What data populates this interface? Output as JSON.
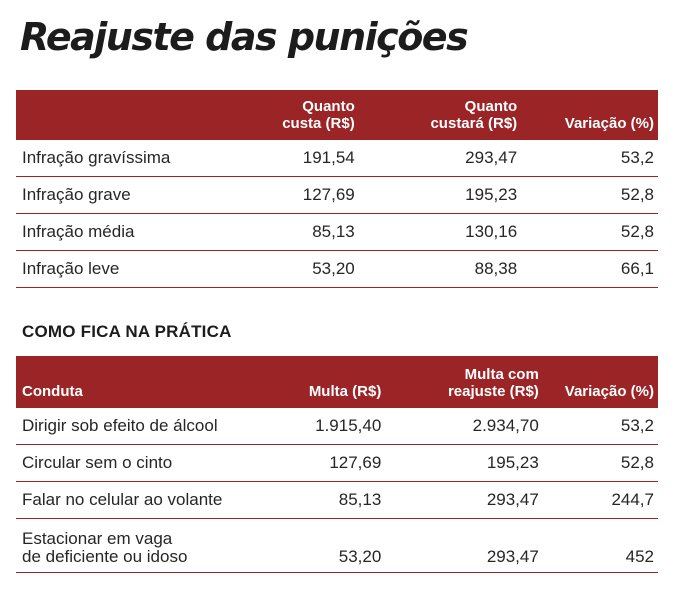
{
  "title": "Reajuste das punições",
  "table1": {
    "headers": [
      "",
      "Quanto\ncusta (R$)",
      "Quanto\ncustará (R$)",
      "Variação (%)"
    ],
    "rows": [
      [
        "Infração gravíssima",
        "191,54",
        "293,47",
        "53,2"
      ],
      [
        "Infração grave",
        "127,69",
        "195,23",
        "52,8"
      ],
      [
        "Infração média",
        "85,13",
        "130,16",
        "52,8"
      ],
      [
        "Infração leve",
        "53,20",
        "88,38",
        "66,1"
      ]
    ]
  },
  "subtitle": "COMO FICA NA PRÁTICA",
  "table2": {
    "headers": [
      "Conduta",
      "Multa (R$)",
      "Multa com\nreajuste (R$)",
      "Variação (%)"
    ],
    "rows": [
      [
        "Dirigir sob efeito de álcool",
        "1.915,40",
        "2.934,70",
        "53,2"
      ],
      [
        "Circular sem o cinto",
        "127,69",
        "195,23",
        "52,8"
      ],
      [
        "Falar no celular ao volante",
        "85,13",
        "293,47",
        "244,7"
      ],
      [
        "Estacionar em vaga\nde deficiente ou idoso",
        "53,20",
        "293,47",
        "452"
      ]
    ]
  },
  "colors": {
    "header_bg": "#9a2426",
    "header_text": "#ffffff",
    "rule": "#9a2426",
    "text": "#262626"
  }
}
